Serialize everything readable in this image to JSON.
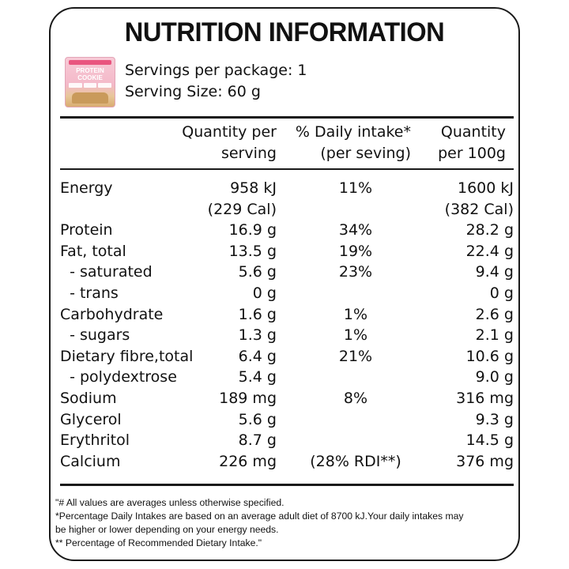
{
  "title": "NUTRITION INFORMATION",
  "package": {
    "image_brand": "PROTEIN COOKIE",
    "servings_per_package": "Servings per package: 1",
    "serving_size": "Serving Size: 60 g"
  },
  "headers": {
    "col1_line1": "Quantity per",
    "col1_line2": "serving",
    "col2_line1": "% Daily  intake*",
    "col2_line2": "(per seving)",
    "col3_line1": "Quantity",
    "col3_line2": "per 100g"
  },
  "rows": [
    {
      "label": "Energy",
      "serving": "958 kJ",
      "daily": "11%",
      "per100": "1600 kJ"
    },
    {
      "label": "",
      "serving": "(229 Cal)",
      "daily": "",
      "per100": "(382 Cal)"
    },
    {
      "label": "Protein",
      "serving": "16.9 g",
      "daily": "34%",
      "per100": "28.2 g"
    },
    {
      "label": "Fat, total",
      "serving": "13.5 g",
      "daily": "19%",
      "per100": "22.4 g"
    },
    {
      "label": "  - saturated",
      "serving": "5.6 g",
      "daily": "23%",
      "per100": "9.4 g"
    },
    {
      "label": "  - trans",
      "serving": "0 g",
      "daily": "",
      "per100": "0 g"
    },
    {
      "label": "Carbohydrate",
      "serving": "1.6 g",
      "daily": "1%",
      "per100": "2.6 g"
    },
    {
      "label": "  - sugars",
      "serving": "1.3 g",
      "daily": "1%",
      "per100": "2.1 g"
    },
    {
      "label": "Dietary fibre,total",
      "serving": "6.4 g",
      "daily": "21%",
      "per100": "10.6 g"
    },
    {
      "label": "  - polydextrose",
      "serving": "5.4 g",
      "daily": "",
      "per100": "9.0 g"
    },
    {
      "label": "Sodium",
      "serving": "189 mg",
      "daily": "8%",
      "per100": "316 mg"
    },
    {
      "label": "Glycerol",
      "serving": "5.6 g",
      "daily": "",
      "per100": "9.3 g"
    },
    {
      "label": "Erythritol",
      "serving": "8.7 g",
      "daily": "",
      "per100": "14.5 g"
    },
    {
      "label": "Calcium",
      "serving": "226 mg",
      "daily": "(28% RDI**)",
      "per100": "376 mg"
    }
  ],
  "footnotes": [
    "\"# All values are averages unless otherwise specified.",
    "*Percentage Daily Intakes are based on an average adult diet of 8700 kJ.Your daily intakes may",
    "be higher or lower depending on your energy needs.",
    "** Percentage of Recommended Dietary Intake.\""
  ]
}
